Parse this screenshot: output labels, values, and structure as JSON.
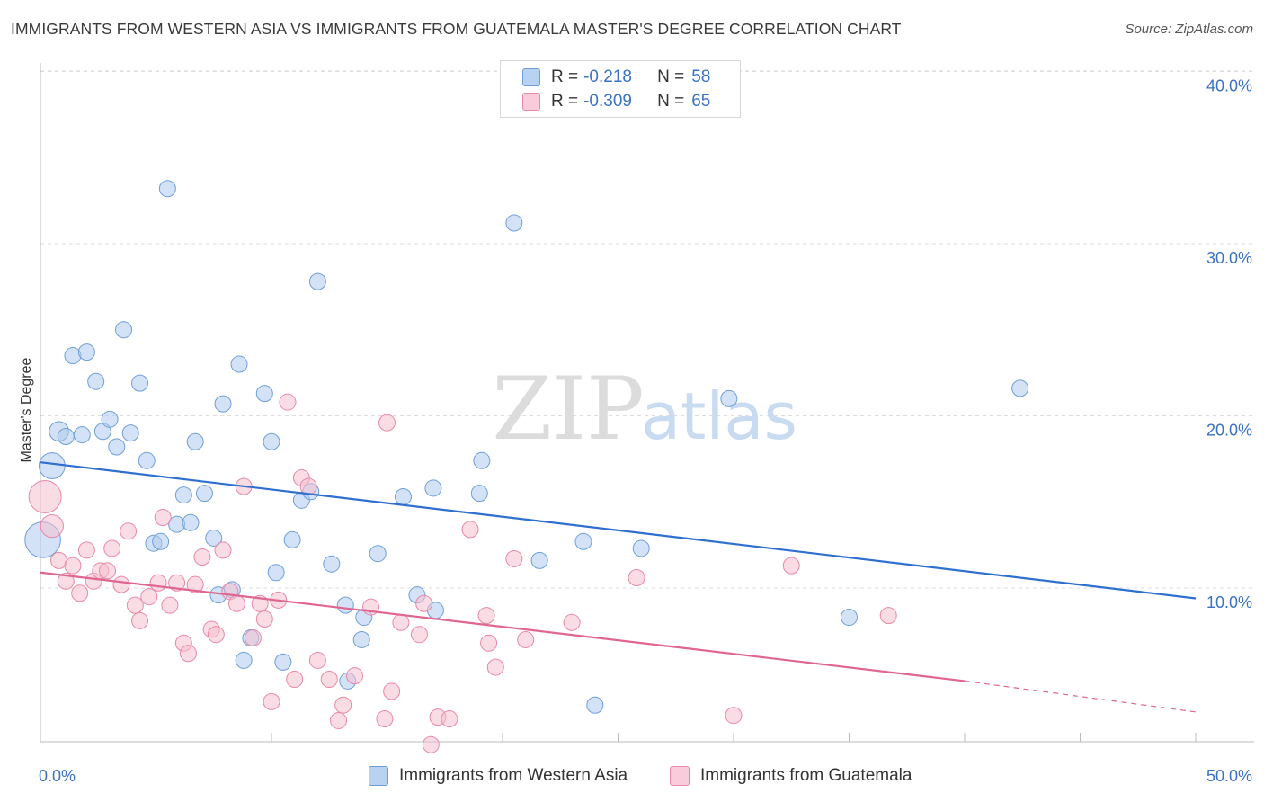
{
  "title": "IMMIGRANTS FROM WESTERN ASIA VS IMMIGRANTS FROM GUATEMALA MASTER'S DEGREE CORRELATION CHART",
  "source": "Source: ZipAtlas.com",
  "watermark": {
    "zip": "ZIP",
    "atlas": "atlas"
  },
  "legend": {
    "rows": [
      {
        "r_label": "R =",
        "r_value": "-0.218",
        "n_label": "N =",
        "n_value": "58"
      },
      {
        "r_label": "R =",
        "r_value": "-0.309",
        "n_label": "N =",
        "n_value": "65"
      }
    ]
  },
  "bottom_legend": [
    "Immigrants from Western Asia",
    "Immigrants from Guatemala"
  ],
  "colors": {
    "blue_fill": "#aecbee",
    "blue_stroke": "#6f9fd8",
    "blue_line": "#2e6fd0",
    "pink_fill": "#f6bfd0",
    "pink_stroke": "#e889a8",
    "pink_line": "#e0668f",
    "axis_text": "#3a72c4",
    "grid": "#dddddd"
  },
  "chart_data": {
    "type": "scatter",
    "title": "IMMIGRANTS FROM WESTERN ASIA VS IMMIGRANTS FROM GUATEMALA MASTER'S DEGREE CORRELATION CHART",
    "xlabel": "",
    "ylabel": "Master's Degree",
    "xlim": [
      0,
      50
    ],
    "ylim": [
      0,
      42
    ],
    "x_tick_labels": [
      "0.0%",
      "50.0%"
    ],
    "y_ticks": [
      10,
      20,
      30,
      40
    ],
    "y_tick_labels": [
      "10.0%",
      "20.0%",
      "30.0%",
      "40.0%"
    ],
    "grid": true,
    "legend_position": "top-center",
    "series": [
      {
        "name": "Immigrants from Western Asia",
        "r": -0.218,
        "n": 58,
        "trend": {
          "x": [
            0,
            50
          ],
          "y": [
            17.3,
            9.4
          ]
        },
        "points": [
          {
            "x": 0.1,
            "y": 12.8,
            "s": 2.2
          },
          {
            "x": 0.5,
            "y": 17.1,
            "s": 1.6
          },
          {
            "x": 0.8,
            "y": 19.1,
            "s": 1.2
          },
          {
            "x": 1.1,
            "y": 18.8,
            "s": 1
          },
          {
            "x": 1.4,
            "y": 23.5,
            "s": 1
          },
          {
            "x": 1.8,
            "y": 18.9,
            "s": 1
          },
          {
            "x": 2.0,
            "y": 23.7,
            "s": 1
          },
          {
            "x": 2.4,
            "y": 22.0,
            "s": 1
          },
          {
            "x": 2.7,
            "y": 19.1,
            "s": 1
          },
          {
            "x": 3.0,
            "y": 19.8,
            "s": 1
          },
          {
            "x": 3.3,
            "y": 18.2,
            "s": 1
          },
          {
            "x": 3.6,
            "y": 25.0,
            "s": 1
          },
          {
            "x": 3.9,
            "y": 19.0,
            "s": 1
          },
          {
            "x": 4.3,
            "y": 21.9,
            "s": 1
          },
          {
            "x": 4.6,
            "y": 17.4,
            "s": 1
          },
          {
            "x": 4.9,
            "y": 12.6,
            "s": 1
          },
          {
            "x": 5.2,
            "y": 12.7,
            "s": 1
          },
          {
            "x": 5.5,
            "y": 33.2,
            "s": 1
          },
          {
            "x": 5.9,
            "y": 13.7,
            "s": 1
          },
          {
            "x": 6.2,
            "y": 15.4,
            "s": 1
          },
          {
            "x": 6.5,
            "y": 13.8,
            "s": 1
          },
          {
            "x": 6.7,
            "y": 18.5,
            "s": 1
          },
          {
            "x": 7.1,
            "y": 15.5,
            "s": 1
          },
          {
            "x": 7.5,
            "y": 12.9,
            "s": 1
          },
          {
            "x": 7.7,
            "y": 9.6,
            "s": 1
          },
          {
            "x": 7.9,
            "y": 20.7,
            "s": 1
          },
          {
            "x": 8.3,
            "y": 9.9,
            "s": 1
          },
          {
            "x": 8.6,
            "y": 23.0,
            "s": 1
          },
          {
            "x": 8.8,
            "y": 5.8,
            "s": 1
          },
          {
            "x": 9.1,
            "y": 7.1,
            "s": 1
          },
          {
            "x": 9.7,
            "y": 21.3,
            "s": 1
          },
          {
            "x": 10.0,
            "y": 18.5,
            "s": 1
          },
          {
            "x": 10.2,
            "y": 10.9,
            "s": 1
          },
          {
            "x": 10.5,
            "y": 5.7,
            "s": 1
          },
          {
            "x": 10.9,
            "y": 12.8,
            "s": 1
          },
          {
            "x": 11.3,
            "y": 15.1,
            "s": 1
          },
          {
            "x": 11.7,
            "y": 15.6,
            "s": 1
          },
          {
            "x": 12.0,
            "y": 27.8,
            "s": 1
          },
          {
            "x": 12.6,
            "y": 11.4,
            "s": 1
          },
          {
            "x": 13.2,
            "y": 9.0,
            "s": 1
          },
          {
            "x": 13.3,
            "y": 4.6,
            "s": 1
          },
          {
            "x": 13.9,
            "y": 7.0,
            "s": 1
          },
          {
            "x": 14.0,
            "y": 8.3,
            "s": 1
          },
          {
            "x": 14.6,
            "y": 12.0,
            "s": 1
          },
          {
            "x": 15.7,
            "y": 15.3,
            "s": 1
          },
          {
            "x": 16.3,
            "y": 9.6,
            "s": 1
          },
          {
            "x": 17.1,
            "y": 8.7,
            "s": 1
          },
          {
            "x": 17.0,
            "y": 15.8,
            "s": 1
          },
          {
            "x": 19.1,
            "y": 17.4,
            "s": 1
          },
          {
            "x": 19.0,
            "y": 15.5,
            "s": 1
          },
          {
            "x": 20.5,
            "y": 31.2,
            "s": 1
          },
          {
            "x": 21.6,
            "y": 11.6,
            "s": 1
          },
          {
            "x": 23.5,
            "y": 12.7,
            "s": 1
          },
          {
            "x": 24.0,
            "y": 3.2,
            "s": 1
          },
          {
            "x": 26.0,
            "y": 12.3,
            "s": 1
          },
          {
            "x": 29.8,
            "y": 21.0,
            "s": 1
          },
          {
            "x": 35.0,
            "y": 8.3,
            "s": 1
          },
          {
            "x": 42.4,
            "y": 21.6,
            "s": 1
          }
        ]
      },
      {
        "name": "Immigrants from Guatemala",
        "r": -0.309,
        "n": 65,
        "trend": {
          "x": [
            0,
            40
          ],
          "y": [
            10.9,
            4.6
          ],
          "dashed_to": [
            50,
            2.8
          ]
        },
        "points": [
          {
            "x": 0.2,
            "y": 15.3,
            "s": 2.0
          },
          {
            "x": 0.5,
            "y": 13.6,
            "s": 1.4
          },
          {
            "x": 0.8,
            "y": 11.6,
            "s": 1
          },
          {
            "x": 1.1,
            "y": 10.4,
            "s": 1
          },
          {
            "x": 1.4,
            "y": 11.3,
            "s": 1
          },
          {
            "x": 1.7,
            "y": 9.7,
            "s": 1
          },
          {
            "x": 2.0,
            "y": 12.2,
            "s": 1
          },
          {
            "x": 2.3,
            "y": 10.4,
            "s": 1
          },
          {
            "x": 2.6,
            "y": 11.0,
            "s": 1
          },
          {
            "x": 2.9,
            "y": 11.0,
            "s": 1
          },
          {
            "x": 3.1,
            "y": 12.3,
            "s": 1
          },
          {
            "x": 3.5,
            "y": 10.2,
            "s": 1
          },
          {
            "x": 3.8,
            "y": 13.3,
            "s": 1
          },
          {
            "x": 4.1,
            "y": 9.0,
            "s": 1
          },
          {
            "x": 4.3,
            "y": 8.1,
            "s": 1
          },
          {
            "x": 4.7,
            "y": 9.5,
            "s": 1
          },
          {
            "x": 5.1,
            "y": 10.3,
            "s": 1
          },
          {
            "x": 5.3,
            "y": 14.1,
            "s": 1
          },
          {
            "x": 5.6,
            "y": 9.0,
            "s": 1
          },
          {
            "x": 5.9,
            "y": 10.3,
            "s": 1
          },
          {
            "x": 6.2,
            "y": 6.8,
            "s": 1
          },
          {
            "x": 6.4,
            "y": 6.2,
            "s": 1
          },
          {
            "x": 6.7,
            "y": 10.2,
            "s": 1
          },
          {
            "x": 7.0,
            "y": 11.8,
            "s": 1
          },
          {
            "x": 7.4,
            "y": 7.6,
            "s": 1
          },
          {
            "x": 7.6,
            "y": 7.3,
            "s": 1
          },
          {
            "x": 7.9,
            "y": 12.2,
            "s": 1
          },
          {
            "x": 8.2,
            "y": 9.8,
            "s": 1
          },
          {
            "x": 8.5,
            "y": 9.1,
            "s": 1
          },
          {
            "x": 8.8,
            "y": 15.9,
            "s": 1
          },
          {
            "x": 9.2,
            "y": 7.1,
            "s": 1
          },
          {
            "x": 9.5,
            "y": 9.1,
            "s": 1
          },
          {
            "x": 9.7,
            "y": 8.2,
            "s": 1
          },
          {
            "x": 10.0,
            "y": 3.4,
            "s": 1
          },
          {
            "x": 10.3,
            "y": 9.3,
            "s": 1
          },
          {
            "x": 10.7,
            "y": 20.8,
            "s": 1
          },
          {
            "x": 11.0,
            "y": 4.7,
            "s": 1
          },
          {
            "x": 11.3,
            "y": 16.4,
            "s": 1
          },
          {
            "x": 11.6,
            "y": 15.9,
            "s": 1
          },
          {
            "x": 12.0,
            "y": 5.8,
            "s": 1
          },
          {
            "x": 12.5,
            "y": 4.7,
            "s": 1
          },
          {
            "x": 12.9,
            "y": 2.3,
            "s": 1
          },
          {
            "x": 13.1,
            "y": 3.2,
            "s": 1
          },
          {
            "x": 13.6,
            "y": 4.9,
            "s": 1
          },
          {
            "x": 14.3,
            "y": 8.9,
            "s": 1
          },
          {
            "x": 14.9,
            "y": 2.4,
            "s": 1
          },
          {
            "x": 15.0,
            "y": 19.6,
            "s": 1
          },
          {
            "x": 15.2,
            "y": 4.0,
            "s": 1
          },
          {
            "x": 15.6,
            "y": 8.0,
            "s": 1
          },
          {
            "x": 16.4,
            "y": 7.3,
            "s": 1
          },
          {
            "x": 16.6,
            "y": 9.1,
            "s": 1
          },
          {
            "x": 16.9,
            "y": 0.9,
            "s": 1
          },
          {
            "x": 17.2,
            "y": 2.5,
            "s": 1
          },
          {
            "x": 17.7,
            "y": 2.4,
            "s": 1
          },
          {
            "x": 18.6,
            "y": 13.4,
            "s": 1
          },
          {
            "x": 19.3,
            "y": 8.4,
            "s": 1
          },
          {
            "x": 19.4,
            "y": 6.8,
            "s": 1
          },
          {
            "x": 19.7,
            "y": 5.4,
            "s": 1
          },
          {
            "x": 20.5,
            "y": 11.7,
            "s": 1
          },
          {
            "x": 21.0,
            "y": 7.0,
            "s": 1
          },
          {
            "x": 23.0,
            "y": 8.0,
            "s": 1
          },
          {
            "x": 25.8,
            "y": 10.6,
            "s": 1
          },
          {
            "x": 30.0,
            "y": 2.6,
            "s": 1
          },
          {
            "x": 32.5,
            "y": 11.3,
            "s": 1
          },
          {
            "x": 36.7,
            "y": 8.4,
            "s": 1
          }
        ]
      }
    ]
  }
}
